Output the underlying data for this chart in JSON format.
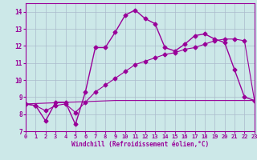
{
  "xlabel": "Windchill (Refroidissement éolien,°C)",
  "bg_color": "#cce8e8",
  "grid_color": "#aabbcc",
  "line_color": "#990099",
  "series1_x": [
    0,
    1,
    2,
    3,
    4,
    5,
    6,
    7,
    8,
    9,
    10,
    11,
    12,
    13,
    14,
    15,
    16,
    17,
    18,
    19,
    20,
    21,
    22,
    23
  ],
  "series1_y": [
    8.6,
    8.5,
    7.6,
    8.7,
    8.7,
    7.4,
    9.3,
    11.9,
    11.9,
    12.8,
    13.8,
    14.1,
    13.6,
    13.3,
    11.9,
    11.7,
    12.1,
    12.6,
    12.7,
    12.4,
    12.2,
    10.6,
    9.0,
    8.8
  ],
  "series2_x": [
    0,
    1,
    2,
    3,
    4,
    5,
    6,
    7,
    8,
    9,
    10,
    11,
    12,
    13,
    14,
    15,
    16,
    17,
    18,
    19,
    20,
    21,
    22,
    23
  ],
  "series2_y": [
    8.6,
    8.5,
    8.2,
    8.5,
    8.6,
    8.1,
    8.7,
    9.3,
    9.7,
    10.1,
    10.5,
    10.9,
    11.1,
    11.3,
    11.5,
    11.6,
    11.8,
    11.9,
    12.1,
    12.3,
    12.4,
    12.4,
    12.3,
    8.8
  ],
  "series3_x": [
    0,
    9,
    23
  ],
  "series3_y": [
    8.6,
    8.8,
    8.8
  ],
  "ylim": [
    7.0,
    14.5
  ],
  "xlim": [
    0,
    23
  ],
  "yticks": [
    7,
    8,
    9,
    10,
    11,
    12,
    13,
    14
  ],
  "xticks": [
    0,
    1,
    2,
    3,
    4,
    5,
    6,
    7,
    8,
    9,
    10,
    11,
    12,
    13,
    14,
    15,
    16,
    17,
    18,
    19,
    20,
    21,
    22,
    23
  ]
}
